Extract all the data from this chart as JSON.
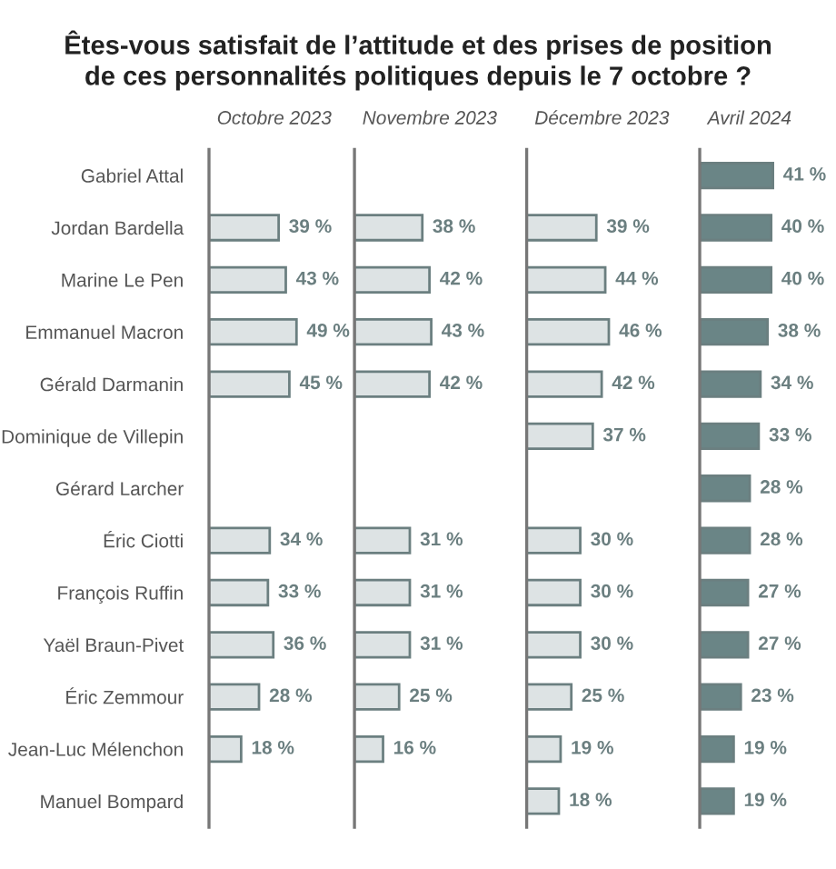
{
  "chart_data": [
    {
      "type": "bar",
      "orientation": "horizontal",
      "title": "Octobre 2023",
      "annotations": [
        "Êtes-vous satisfait de l’attitude et des prises de position\nde ces personnalités politiques depuis le 7 octobre ?"
      ],
      "tick_labels": "y",
      "categories": [
        "Gabriel Attal",
        "Jordan Bardella",
        "Marine Le Pen",
        "Emmanuel Macron",
        "Gérald Darmanin",
        "Dominique de Villepin",
        "Gérard Larcher",
        "Éric Ciotti",
        "François Ruffin",
        "Yaël Braun-Pivet",
        "Éric Zemmour",
        "Jean-Luc Mélenchon",
        "Manuel Bompard"
      ],
      "series": [
        {
          "color": "#dde3e4",
          "values": [
            null,
            39,
            43,
            49,
            45,
            null,
            null,
            34,
            33,
            36,
            28,
            18,
            null
          ],
          "value_labels": [
            null,
            "39 %",
            "43 %",
            "49 %",
            "45 %",
            null,
            null,
            "34 %",
            "33 %",
            "36 %",
            "28 %",
            "18 %",
            null
          ]
        }
      ]
    },
    {
      "type": "bar",
      "orientation": "horizontal",
      "title": "Novembre 2023",
      "tick_labels": false,
      "categories": [
        null,
        null,
        null,
        null,
        null,
        null,
        null,
        null,
        null,
        null,
        null,
        null,
        null
      ],
      "series": [
        {
          "color": "#dde3e4",
          "values": [
            null,
            38,
            42,
            43,
            42,
            null,
            null,
            31,
            31,
            31,
            25,
            16,
            null
          ],
          "value_labels": [
            null,
            "38 %",
            "42 %",
            "43 %",
            "42 %",
            null,
            null,
            "31 %",
            "31 %",
            "31 %",
            "25 %",
            "16 %",
            null
          ]
        }
      ]
    },
    {
      "type": "bar",
      "orientation": "horizontal",
      "title": "Décembre 2023",
      "tick_labels": false,
      "categories": [
        null,
        null,
        null,
        null,
        null,
        null,
        null,
        null,
        null,
        null,
        null,
        null,
        null
      ],
      "series": [
        {
          "color": "#dde3e4",
          "values": [
            null,
            39,
            44,
            46,
            42,
            37,
            null,
            30,
            30,
            30,
            25,
            19,
            18
          ],
          "value_labels": [
            null,
            "39 %",
            "44 %",
            "46 %",
            "42 %",
            "37 %",
            null,
            "30 %",
            "30 %",
            "30 %",
            "25 %",
            "19 %",
            "18 %"
          ]
        }
      ]
    },
    {
      "type": "bar",
      "orientation": "horizontal",
      "title": "Avril 2024",
      "tick_labels": false,
      "categories": [
        null,
        null,
        null,
        null,
        null,
        null,
        null,
        null,
        null,
        null,
        null,
        null,
        null
      ],
      "series": [
        {
          "color": "#6a8586",
          "values": [
            41,
            40,
            40,
            38,
            34,
            33,
            28,
            28,
            27,
            27,
            23,
            19,
            19
          ],
          "value_labels": [
            "41 %",
            "40 %",
            "40 %",
            "38 %",
            "34 %",
            "33 %",
            "28 %",
            "28 %",
            "27 %",
            "27 %",
            "23 %",
            "19 %",
            "19 %"
          ]
        }
      ]
    }
  ]
}
